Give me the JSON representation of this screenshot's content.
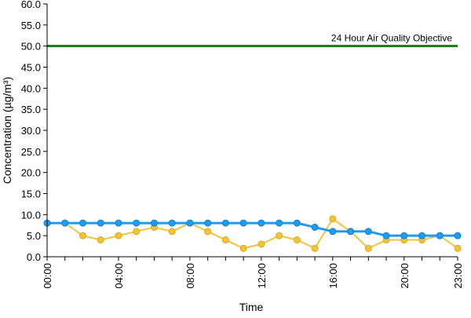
{
  "chart_data": {
    "type": "line",
    "title": "",
    "xlabel": "Time",
    "ylabel": "Concentration (µg/m³)",
    "ylim": [
      0,
      60
    ],
    "yticks": [
      "0.0",
      "5.0",
      "10.0",
      "15.0",
      "20.0",
      "25.0",
      "30.0",
      "35.0",
      "40.0",
      "45.0",
      "50.0",
      "55.0",
      "60.0"
    ],
    "x": [
      "00:00",
      "01:00",
      "02:00",
      "03:00",
      "04:00",
      "05:00",
      "06:00",
      "07:00",
      "08:00",
      "09:00",
      "10:00",
      "11:00",
      "12:00",
      "13:00",
      "14:00",
      "15:00",
      "16:00",
      "17:00",
      "18:00",
      "19:00",
      "20:00",
      "21:00",
      "22:00",
      "23:00"
    ],
    "xtick_labels": [
      "00:00",
      "04:00",
      "08:00",
      "12:00",
      "16:00",
      "20:00",
      "23:00"
    ],
    "grid": false,
    "series": [
      {
        "values": [
          8,
          8,
          5,
          4,
          5,
          6,
          7,
          6,
          8,
          6,
          4,
          2,
          3,
          5,
          4,
          2,
          9,
          6,
          2,
          4,
          4,
          4,
          5,
          2
        ],
        "color": "#f2c43a"
      },
      {
        "values": [
          8,
          8,
          8,
          8,
          8,
          8,
          8,
          8,
          8,
          8,
          8,
          8,
          8,
          8,
          8,
          7,
          6,
          6,
          6,
          5,
          5,
          5,
          5,
          5
        ],
        "color": "#1e9cf0"
      }
    ],
    "reference_line": {
      "label": "24 Hour Air Quality Objective",
      "value": 50,
      "color": "#1a7a1a"
    }
  }
}
